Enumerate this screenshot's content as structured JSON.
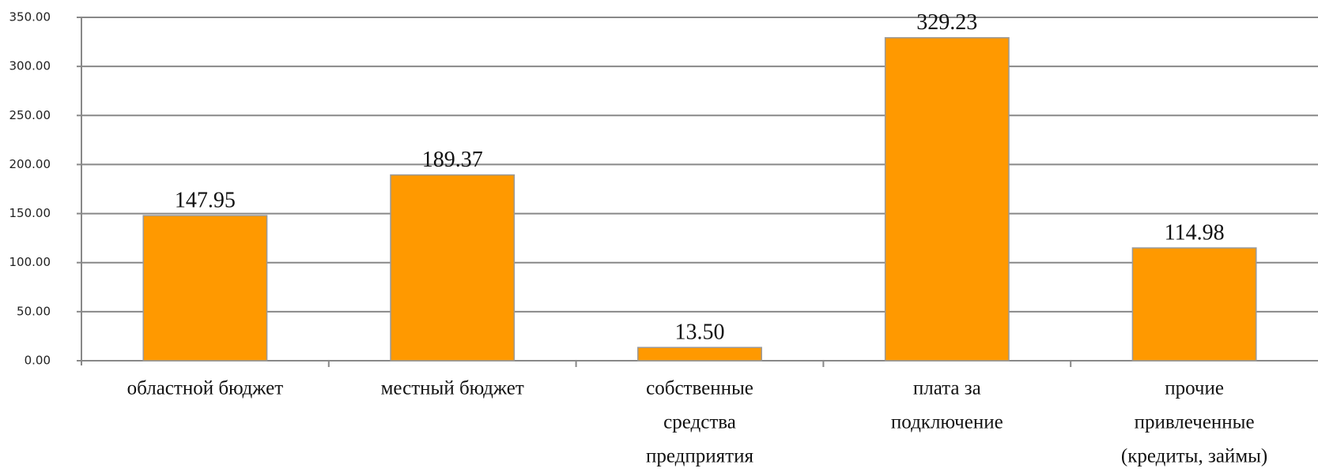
{
  "chart_data": {
    "type": "bar",
    "categories": [
      [
        "областной бюджет"
      ],
      [
        "местный бюджет"
      ],
      [
        "собственные",
        "средства",
        "предприятия"
      ],
      [
        "плата за",
        "подключение"
      ],
      [
        "прочие",
        "привлеченные",
        "(кредиты, займы)"
      ]
    ],
    "values": [
      147.95,
      189.37,
      13.5,
      329.23,
      114.98
    ],
    "value_labels": [
      "147.95",
      "189.37",
      "13.50",
      "329.23",
      "114.98"
    ],
    "color": "#ff9900",
    "ylim": [
      0,
      350
    ],
    "yticks": [
      {
        "value": 0,
        "label": "0.00"
      },
      {
        "value": 50,
        "label": "50.00"
      },
      {
        "value": 100,
        "label": "100.00"
      },
      {
        "value": 150,
        "label": "150.00"
      },
      {
        "value": 200,
        "label": "200.00"
      },
      {
        "value": 250,
        "label": "250.00"
      },
      {
        "value": 300,
        "label": "300.00"
      },
      {
        "value": 350,
        "label": "350.00"
      }
    ],
    "grid": true
  }
}
